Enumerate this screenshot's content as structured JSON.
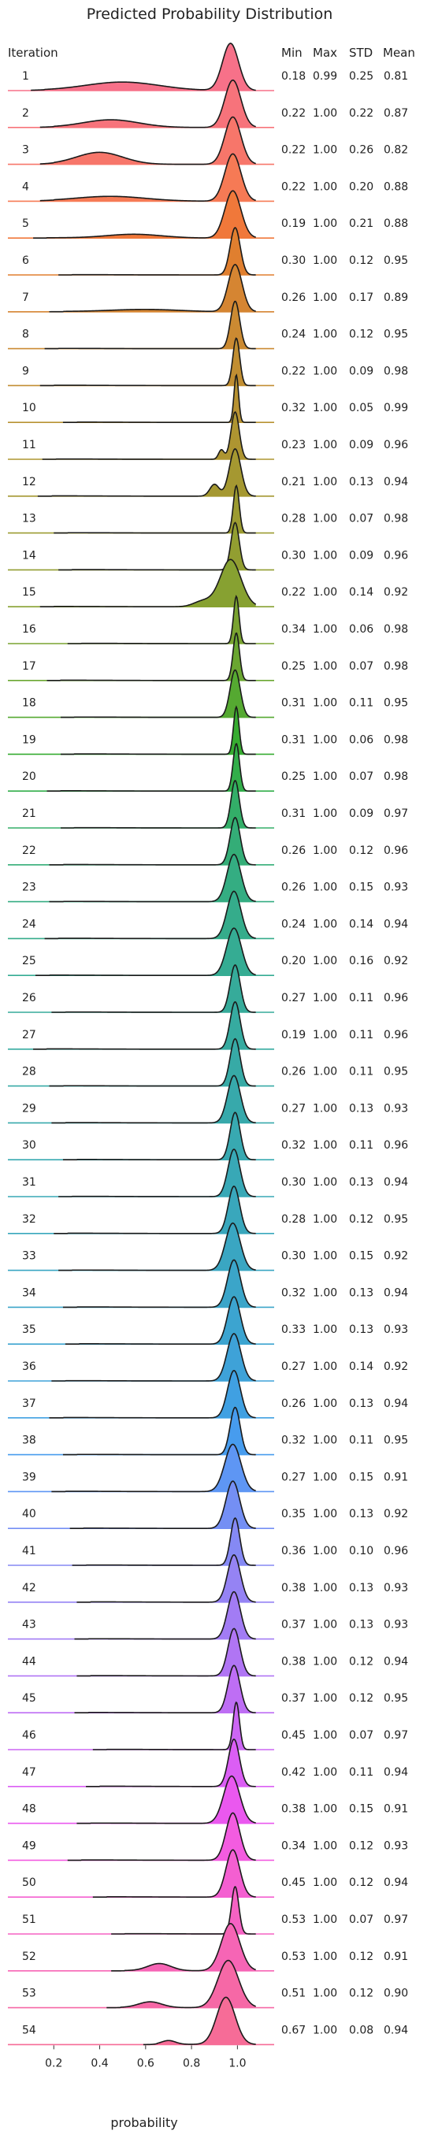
{
  "chart_data": {
    "type": "ridgeline",
    "title": "Predicted Probability Distribution",
    "xlabel": "probability",
    "xticks": [
      0.2,
      0.4,
      0.6,
      0.8,
      1.0
    ],
    "xlim": [
      0.0,
      1.16
    ],
    "columns": {
      "iteration": "Iteration",
      "min": "Min",
      "max": "Max",
      "std": "STD",
      "mean": "Mean"
    },
    "rows": [
      {
        "iter": "1",
        "min": "0.18",
        "max": "0.99",
        "std": "0.25",
        "mean": "0.81",
        "color": "#f77189",
        "peak": 0.97,
        "width": 0.035,
        "secondary": [
          [
            0.5,
            0.16,
            0.18
          ]
        ]
      },
      {
        "iter": "2",
        "min": "0.22",
        "max": "1.00",
        "std": "0.22",
        "mean": "0.87",
        "color": "#f7737b",
        "peak": 0.98,
        "width": 0.035,
        "secondary": [
          [
            0.45,
            0.12,
            0.16
          ]
        ]
      },
      {
        "iter": "3",
        "min": "0.22",
        "max": "1.00",
        "std": "0.26",
        "mean": "0.82",
        "color": "#f7766a",
        "peak": 0.98,
        "width": 0.035,
        "secondary": [
          [
            0.4,
            0.1,
            0.25
          ]
        ]
      },
      {
        "iter": "4",
        "min": "0.22",
        "max": "1.00",
        "std": "0.20",
        "mean": "0.88",
        "color": "#f67a55",
        "peak": 0.98,
        "width": 0.035,
        "secondary": [
          [
            0.45,
            0.15,
            0.1
          ]
        ]
      },
      {
        "iter": "5",
        "min": "0.19",
        "max": "1.00",
        "std": "0.21",
        "mean": "0.88",
        "color": "#f0783a",
        "peak": 0.98,
        "width": 0.035,
        "secondary": [
          [
            0.55,
            0.12,
            0.08
          ]
        ]
      },
      {
        "iter": "6",
        "min": "0.30",
        "max": "1.00",
        "std": "0.12",
        "mean": "0.95",
        "color": "#e07f2f",
        "peak": 0.99,
        "width": 0.022,
        "secondary": []
      },
      {
        "iter": "7",
        "min": "0.26",
        "max": "1.00",
        "std": "0.17",
        "mean": "0.89",
        "color": "#d58532",
        "peak": 0.99,
        "width": 0.03,
        "secondary": [
          [
            0.6,
            0.15,
            0.05
          ]
        ]
      },
      {
        "iter": "8",
        "min": "0.24",
        "max": "1.00",
        "std": "0.12",
        "mean": "0.95",
        "color": "#cb8a32",
        "peak": 0.99,
        "width": 0.02,
        "secondary": []
      },
      {
        "iter": "9",
        "min": "0.22",
        "max": "1.00",
        "std": "0.09",
        "mean": "0.98",
        "color": "#c18e32",
        "peak": 0.995,
        "width": 0.015,
        "secondary": []
      },
      {
        "iter": "10",
        "min": "0.32",
        "max": "1.00",
        "std": "0.05",
        "mean": "0.99",
        "color": "#b79232",
        "peak": 0.995,
        "width": 0.01,
        "secondary": []
      },
      {
        "iter": "11",
        "min": "0.23",
        "max": "1.00",
        "std": "0.09",
        "mean": "0.96",
        "color": "#ae9531",
        "peak": 0.99,
        "width": 0.018,
        "secondary": [
          [
            0.93,
            0.012,
            0.2
          ]
        ]
      },
      {
        "iter": "12",
        "min": "0.21",
        "max": "1.00",
        "std": "0.13",
        "mean": "0.94",
        "color": "#a59831",
        "peak": 0.99,
        "width": 0.025,
        "secondary": [
          [
            0.9,
            0.02,
            0.25
          ]
        ]
      },
      {
        "iter": "13",
        "min": "0.28",
        "max": "1.00",
        "std": "0.07",
        "mean": "0.98",
        "color": "#9c9b31",
        "peak": 0.995,
        "width": 0.013,
        "secondary": []
      },
      {
        "iter": "14",
        "min": "0.30",
        "max": "1.00",
        "std": "0.09",
        "mean": "0.96",
        "color": "#929e31",
        "peak": 0.99,
        "width": 0.018,
        "secondary": []
      },
      {
        "iter": "15",
        "min": "0.22",
        "max": "1.00",
        "std": "0.14",
        "mean": "0.92",
        "color": "#87a131",
        "peak": 0.97,
        "width": 0.045,
        "secondary": [
          [
            0.85,
            0.04,
            0.12
          ]
        ]
      },
      {
        "iter": "16",
        "min": "0.34",
        "max": "1.00",
        "std": "0.06",
        "mean": "0.98",
        "color": "#7aa331",
        "peak": 0.995,
        "width": 0.012,
        "secondary": []
      },
      {
        "iter": "17",
        "min": "0.25",
        "max": "1.00",
        "std": "0.07",
        "mean": "0.98",
        "color": "#6aa631",
        "peak": 0.995,
        "width": 0.014,
        "secondary": []
      },
      {
        "iter": "18",
        "min": "0.31",
        "max": "1.00",
        "std": "0.11",
        "mean": "0.95",
        "color": "#55a931",
        "peak": 0.99,
        "width": 0.022,
        "secondary": []
      },
      {
        "iter": "19",
        "min": "0.31",
        "max": "1.00",
        "std": "0.06",
        "mean": "0.98",
        "color": "#37ac31",
        "peak": 0.995,
        "width": 0.012,
        "secondary": []
      },
      {
        "iter": "20",
        "min": "0.25",
        "max": "1.00",
        "std": "0.07",
        "mean": "0.98",
        "color": "#32ae4a",
        "peak": 0.995,
        "width": 0.014,
        "secondary": []
      },
      {
        "iter": "21",
        "min": "0.31",
        "max": "1.00",
        "std": "0.09",
        "mean": "0.97",
        "color": "#33ae68",
        "peak": 0.99,
        "width": 0.018,
        "secondary": []
      },
      {
        "iter": "22",
        "min": "0.26",
        "max": "1.00",
        "std": "0.12",
        "mean": "0.96",
        "color": "#34ad77",
        "peak": 0.99,
        "width": 0.022,
        "secondary": []
      },
      {
        "iter": "23",
        "min": "0.26",
        "max": "1.00",
        "std": "0.15",
        "mean": "0.93",
        "color": "#34ad82",
        "peak": 0.985,
        "width": 0.03,
        "secondary": []
      },
      {
        "iter": "24",
        "min": "0.24",
        "max": "1.00",
        "std": "0.14",
        "mean": "0.94",
        "color": "#35ac8b",
        "peak": 0.985,
        "width": 0.03,
        "secondary": []
      },
      {
        "iter": "25",
        "min": "0.20",
        "max": "1.00",
        "std": "0.16",
        "mean": "0.92",
        "color": "#35ac93",
        "peak": 0.985,
        "width": 0.032,
        "secondary": []
      },
      {
        "iter": "26",
        "min": "0.27",
        "max": "1.00",
        "std": "0.11",
        "mean": "0.96",
        "color": "#36ab9a",
        "peak": 0.99,
        "width": 0.022,
        "secondary": []
      },
      {
        "iter": "27",
        "min": "0.19",
        "max": "1.00",
        "std": "0.11",
        "mean": "0.96",
        "color": "#36aba0",
        "peak": 0.99,
        "width": 0.022,
        "secondary": []
      },
      {
        "iter": "28",
        "min": "0.26",
        "max": "1.00",
        "std": "0.11",
        "mean": "0.95",
        "color": "#37aaa6",
        "peak": 0.99,
        "width": 0.022,
        "secondary": []
      },
      {
        "iter": "29",
        "min": "0.27",
        "max": "1.00",
        "std": "0.13",
        "mean": "0.93",
        "color": "#37a9ab",
        "peak": 0.985,
        "width": 0.028,
        "secondary": []
      },
      {
        "iter": "30",
        "min": "0.32",
        "max": "1.00",
        "std": "0.11",
        "mean": "0.96",
        "color": "#38a9b1",
        "peak": 0.99,
        "width": 0.022,
        "secondary": []
      },
      {
        "iter": "31",
        "min": "0.30",
        "max": "1.00",
        "std": "0.13",
        "mean": "0.94",
        "color": "#38a8b6",
        "peak": 0.985,
        "width": 0.026,
        "secondary": []
      },
      {
        "iter": "32",
        "min": "0.28",
        "max": "1.00",
        "std": "0.12",
        "mean": "0.95",
        "color": "#39a7bc",
        "peak": 0.985,
        "width": 0.025,
        "secondary": []
      },
      {
        "iter": "33",
        "min": "0.30",
        "max": "1.00",
        "std": "0.15",
        "mean": "0.92",
        "color": "#3aa6c2",
        "peak": 0.98,
        "width": 0.032,
        "secondary": []
      },
      {
        "iter": "34",
        "min": "0.32",
        "max": "1.00",
        "std": "0.13",
        "mean": "0.94",
        "color": "#3ba5c9",
        "peak": 0.985,
        "width": 0.028,
        "secondary": []
      },
      {
        "iter": "35",
        "min": "0.33",
        "max": "1.00",
        "std": "0.13",
        "mean": "0.93",
        "color": "#3ca4d0",
        "peak": 0.985,
        "width": 0.028,
        "secondary": []
      },
      {
        "iter": "36",
        "min": "0.27",
        "max": "1.00",
        "std": "0.14",
        "mean": "0.92",
        "color": "#3ea2d8",
        "peak": 0.985,
        "width": 0.03,
        "secondary": []
      },
      {
        "iter": "37",
        "min": "0.26",
        "max": "1.00",
        "std": "0.13",
        "mean": "0.94",
        "color": "#40a0e2",
        "peak": 0.985,
        "width": 0.028,
        "secondary": []
      },
      {
        "iter": "38",
        "min": "0.32",
        "max": "1.00",
        "std": "0.11",
        "mean": "0.95",
        "color": "#479cee",
        "peak": 0.99,
        "width": 0.022,
        "secondary": []
      },
      {
        "iter": "39",
        "min": "0.27",
        "max": "1.00",
        "std": "0.15",
        "mean": "0.91",
        "color": "#5e96f4",
        "peak": 0.98,
        "width": 0.035,
        "secondary": []
      },
      {
        "iter": "40",
        "min": "0.35",
        "max": "1.00",
        "std": "0.13",
        "mean": "0.92",
        "color": "#748ff4",
        "peak": 0.98,
        "width": 0.03,
        "secondary": []
      },
      {
        "iter": "41",
        "min": "0.36",
        "max": "1.00",
        "std": "0.10",
        "mean": "0.96",
        "color": "#8589f4",
        "peak": 0.99,
        "width": 0.02,
        "secondary": []
      },
      {
        "iter": "42",
        "min": "0.38",
        "max": "1.00",
        "std": "0.13",
        "mean": "0.93",
        "color": "#9583f4",
        "peak": 0.985,
        "width": 0.028,
        "secondary": []
      },
      {
        "iter": "43",
        "min": "0.37",
        "max": "1.00",
        "std": "0.13",
        "mean": "0.93",
        "color": "#a27cf4",
        "peak": 0.985,
        "width": 0.028,
        "secondary": []
      },
      {
        "iter": "44",
        "min": "0.38",
        "max": "1.00",
        "std": "0.12",
        "mean": "0.94",
        "color": "#b075f4",
        "peak": 0.985,
        "width": 0.026,
        "secondary": []
      },
      {
        "iter": "45",
        "min": "0.37",
        "max": "1.00",
        "std": "0.12",
        "mean": "0.95",
        "color": "#be6ef4",
        "peak": 0.985,
        "width": 0.026,
        "secondary": []
      },
      {
        "iter": "46",
        "min": "0.45",
        "max": "1.00",
        "std": "0.07",
        "mean": "0.97",
        "color": "#cc66f4",
        "peak": 0.995,
        "width": 0.014,
        "secondary": []
      },
      {
        "iter": "47",
        "min": "0.42",
        "max": "1.00",
        "std": "0.11",
        "mean": "0.94",
        "color": "#db5ef4",
        "peak": 0.985,
        "width": 0.024,
        "secondary": []
      },
      {
        "iter": "48",
        "min": "0.38",
        "max": "1.00",
        "std": "0.15",
        "mean": "0.91",
        "color": "#ea58ef",
        "peak": 0.975,
        "width": 0.035,
        "secondary": []
      },
      {
        "iter": "49",
        "min": "0.34",
        "max": "1.00",
        "std": "0.12",
        "mean": "0.93",
        "color": "#f35ce0",
        "peak": 0.98,
        "width": 0.03,
        "secondary": []
      },
      {
        "iter": "50",
        "min": "0.45",
        "max": "1.00",
        "std": "0.12",
        "mean": "0.94",
        "color": "#f45fd1",
        "peak": 0.98,
        "width": 0.03,
        "secondary": []
      },
      {
        "iter": "51",
        "min": "0.53",
        "max": "1.00",
        "std": "0.07",
        "mean": "0.97",
        "color": "#f562c3",
        "peak": 0.99,
        "width": 0.016,
        "secondary": []
      },
      {
        "iter": "52",
        "min": "0.53",
        "max": "1.00",
        "std": "0.12",
        "mean": "0.91",
        "color": "#f665b5",
        "peak": 0.97,
        "width": 0.04,
        "secondary": [
          [
            0.66,
            0.05,
            0.15
          ]
        ]
      },
      {
        "iter": "53",
        "min": "0.51",
        "max": "1.00",
        "std": "0.12",
        "mean": "0.90",
        "color": "#f668a6",
        "peak": 0.96,
        "width": 0.045,
        "secondary": [
          [
            0.62,
            0.05,
            0.12
          ]
        ]
      },
      {
        "iter": "54",
        "min": "0.67",
        "max": "1.00",
        "std": "0.08",
        "mean": "0.94",
        "color": "#f66c97",
        "peak": 0.95,
        "width": 0.04,
        "secondary": [
          [
            0.7,
            0.03,
            0.08
          ]
        ]
      }
    ]
  }
}
